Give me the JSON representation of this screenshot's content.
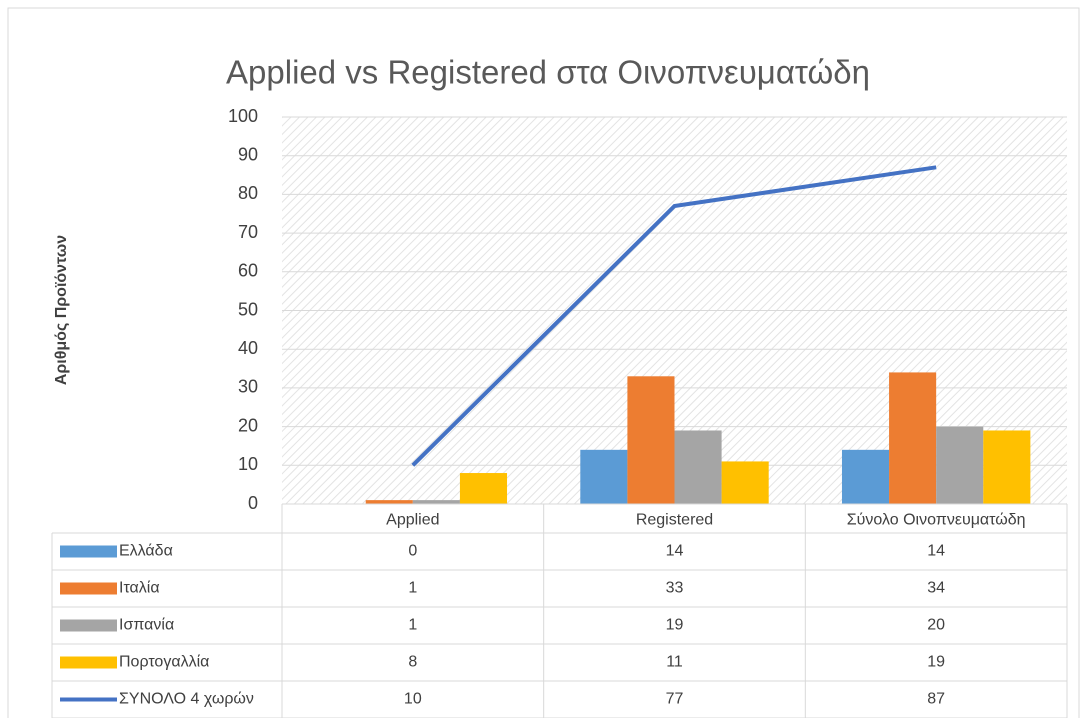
{
  "chart_data": {
    "type": "bar",
    "title": "Applied vs Registered στα Οινοπνευματώδη",
    "y_label": "Αριθμός Προϊόντων",
    "categories": [
      "Applied",
      "Registered",
      "Σύνολο Οινοπνευματώδη"
    ],
    "series": [
      {
        "name": "Ελλάδα",
        "color": "#5b9bd5",
        "values": [
          0,
          14,
          14
        ]
      },
      {
        "name": "Ιταλία",
        "color": "#ed7d31",
        "values": [
          1,
          33,
          34
        ]
      },
      {
        "name": "Ισπανία",
        "color": "#a5a5a5",
        "values": [
          1,
          19,
          20
        ]
      },
      {
        "name": "Πορτογαλλία",
        "color": "#ffc000",
        "values": [
          8,
          11,
          19
        ]
      },
      {
        "name": "ΣΥΝΟΛΟ 4 χωρών",
        "color": "#4472c4",
        "type": "line",
        "values": [
          10,
          77,
          87
        ]
      }
    ],
    "ylim": [
      0,
      100
    ],
    "yticks": [
      0,
      10,
      20,
      30,
      40,
      50,
      60,
      70,
      80,
      90,
      100
    ],
    "grid": true
  }
}
